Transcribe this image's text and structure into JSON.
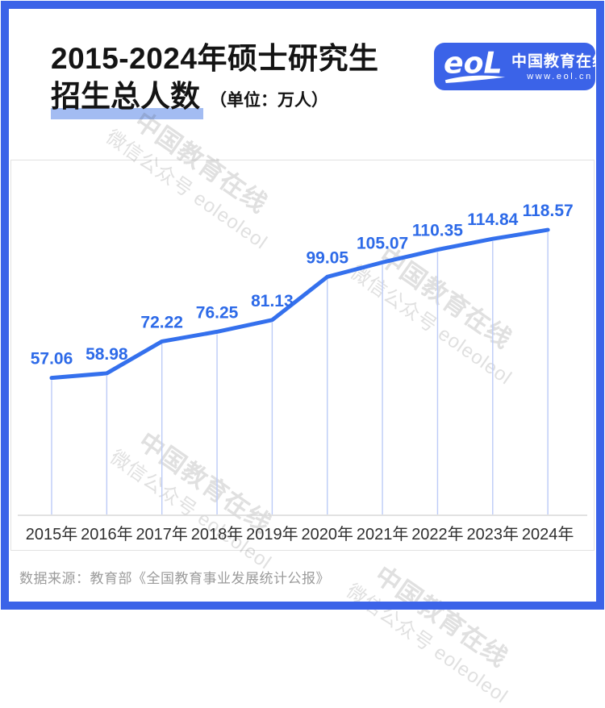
{
  "header": {
    "title_line1": "2015-2024年硕士研究生",
    "title_line2": "招生总人数",
    "unit_label": "（单位：万人）"
  },
  "logo": {
    "brand_mark": "eol",
    "brand_name": "中国教育在线",
    "brand_url": "www.eol.cn"
  },
  "watermark": {
    "line1": "中国教育在线",
    "line2": "微信公众号 eoleoleol"
  },
  "footer": {
    "source": "数据来源：教育部《全国教育事业发展统计公报》"
  },
  "colors": {
    "brand_blue": "#3B63E8",
    "line_blue": "#3470ED",
    "label_blue": "#2D6AE8",
    "dropline_blue": "#BCCBF7",
    "highlight_blue": "#A3BCF2",
    "axis_gray": "#D9D9D9",
    "tick_text": "#2F2F2F",
    "source_gray": "#9B9B9B",
    "title_black": "#141414"
  },
  "chart_data": {
    "type": "line",
    "title": "2015-2024年硕士研究生招生总人数",
    "unit": "万人",
    "series_name": "硕士研究生招生总人数",
    "categories": [
      "2015年",
      "2016年",
      "2017年",
      "2018年",
      "2019年",
      "2020年",
      "2021年",
      "2022年",
      "2023年",
      "2024年"
    ],
    "values": [
      57.06,
      58.98,
      72.22,
      76.25,
      81.13,
      99.05,
      105.07,
      110.35,
      114.84,
      118.57
    ],
    "ylim": [
      0,
      146
    ],
    "grid": false,
    "legend_position": "none",
    "data_labels": true,
    "droplines": true
  }
}
